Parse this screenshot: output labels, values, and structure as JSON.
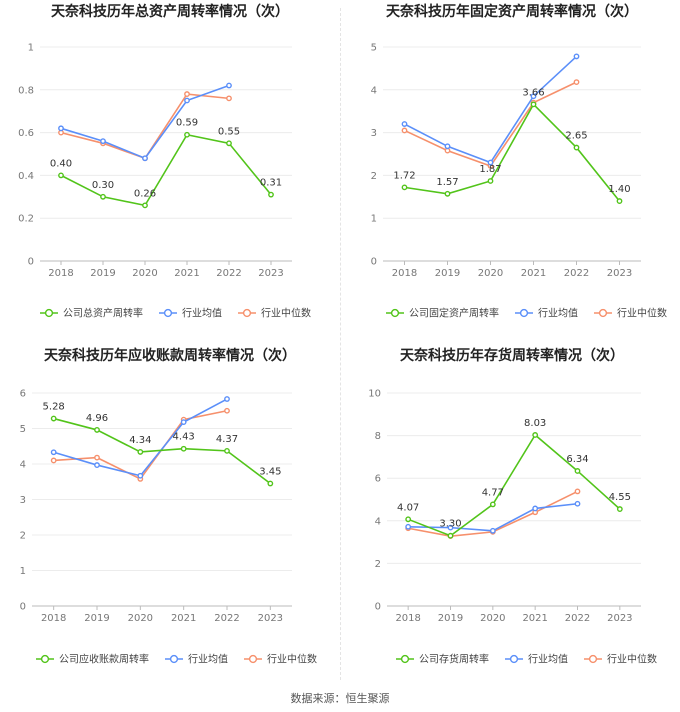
{
  "chart_data": [
    {
      "type": "line",
      "title": "天奈科技历年总资产周转率情况（次）",
      "categories": [
        "2018",
        "2019",
        "2020",
        "2021",
        "2022",
        "2023"
      ],
      "yticks": [
        "0",
        "0.2",
        "0.4",
        "0.6",
        "0.8",
        "1"
      ],
      "ylim": [
        0,
        1
      ],
      "series": [
        {
          "name": "公司总资产周转率",
          "color": "#52c41a",
          "values": [
            0.4,
            0.3,
            0.26,
            0.59,
            0.55,
            0.31
          ],
          "labels": [
            "0.40",
            "0.30",
            "0.26",
            "0.59",
            "0.55",
            "0.31"
          ]
        },
        {
          "name": "行业均值",
          "color": "#5b8ff9",
          "values": [
            0.62,
            0.56,
            0.48,
            0.75,
            0.82,
            null
          ]
        },
        {
          "name": "行业中位数",
          "color": "#f6906c",
          "values": [
            0.6,
            0.55,
            0.48,
            0.78,
            0.76,
            null
          ]
        }
      ]
    },
    {
      "type": "line",
      "title": "天奈科技历年固定资产周转率情况（次）",
      "categories": [
        "2018",
        "2019",
        "2020",
        "2021",
        "2022",
        "2023"
      ],
      "yticks": [
        "0",
        "1",
        "2",
        "3",
        "4",
        "5"
      ],
      "ylim": [
        0,
        5
      ],
      "series": [
        {
          "name": "公司固定资产周转率",
          "color": "#52c41a",
          "values": [
            1.72,
            1.57,
            1.87,
            3.66,
            2.65,
            1.4
          ],
          "labels": [
            "1.72",
            "1.57",
            "1.87",
            "3.66",
            "2.65",
            "1.40"
          ]
        },
        {
          "name": "行业均值",
          "color": "#5b8ff9",
          "values": [
            3.2,
            2.68,
            2.3,
            3.85,
            4.78,
            null
          ]
        },
        {
          "name": "行业中位数",
          "color": "#f6906c",
          "values": [
            3.05,
            2.58,
            2.22,
            3.7,
            4.18,
            null
          ]
        }
      ]
    },
    {
      "type": "line",
      "title": "天奈科技历年应收账款周转率情况（次）",
      "categories": [
        "2018",
        "2019",
        "2020",
        "2021",
        "2022",
        "2023"
      ],
      "yticks": [
        "0",
        "1",
        "2",
        "3",
        "4",
        "5",
        "6"
      ],
      "ylim": [
        0,
        6
      ],
      "series": [
        {
          "name": "公司应收账款周转率",
          "color": "#52c41a",
          "values": [
            5.28,
            4.96,
            4.34,
            4.43,
            4.37,
            3.45
          ],
          "labels": [
            "5.28",
            "4.96",
            "4.34",
            "4.43",
            "4.37",
            "3.45"
          ]
        },
        {
          "name": "行业均值",
          "color": "#5b8ff9",
          "values": [
            4.33,
            3.97,
            3.67,
            5.18,
            5.83,
            null
          ]
        },
        {
          "name": "行业中位数",
          "color": "#f6906c",
          "values": [
            4.1,
            4.18,
            3.58,
            5.25,
            5.5,
            null
          ]
        }
      ]
    },
    {
      "type": "line",
      "title": "天奈科技历年存货周转率情况（次）",
      "categories": [
        "2018",
        "2019",
        "2020",
        "2021",
        "2022",
        "2023"
      ],
      "yticks": [
        "0",
        "2",
        "4",
        "6",
        "8",
        "10"
      ],
      "ylim": [
        0,
        10
      ],
      "series": [
        {
          "name": "公司存货周转率",
          "color": "#52c41a",
          "values": [
            4.07,
            3.3,
            4.77,
            8.03,
            6.34,
            4.55
          ],
          "labels": [
            "4.07",
            "3.30",
            "4.77",
            "8.03",
            "6.34",
            "4.55"
          ]
        },
        {
          "name": "行业均值",
          "color": "#5b8ff9",
          "values": [
            3.72,
            3.68,
            3.53,
            4.58,
            4.8,
            null
          ]
        },
        {
          "name": "行业中位数",
          "color": "#f6906c",
          "values": [
            3.65,
            3.28,
            3.48,
            4.4,
            5.38,
            null
          ]
        }
      ]
    }
  ],
  "footer": {
    "source": "数据来源：恒生聚源"
  }
}
